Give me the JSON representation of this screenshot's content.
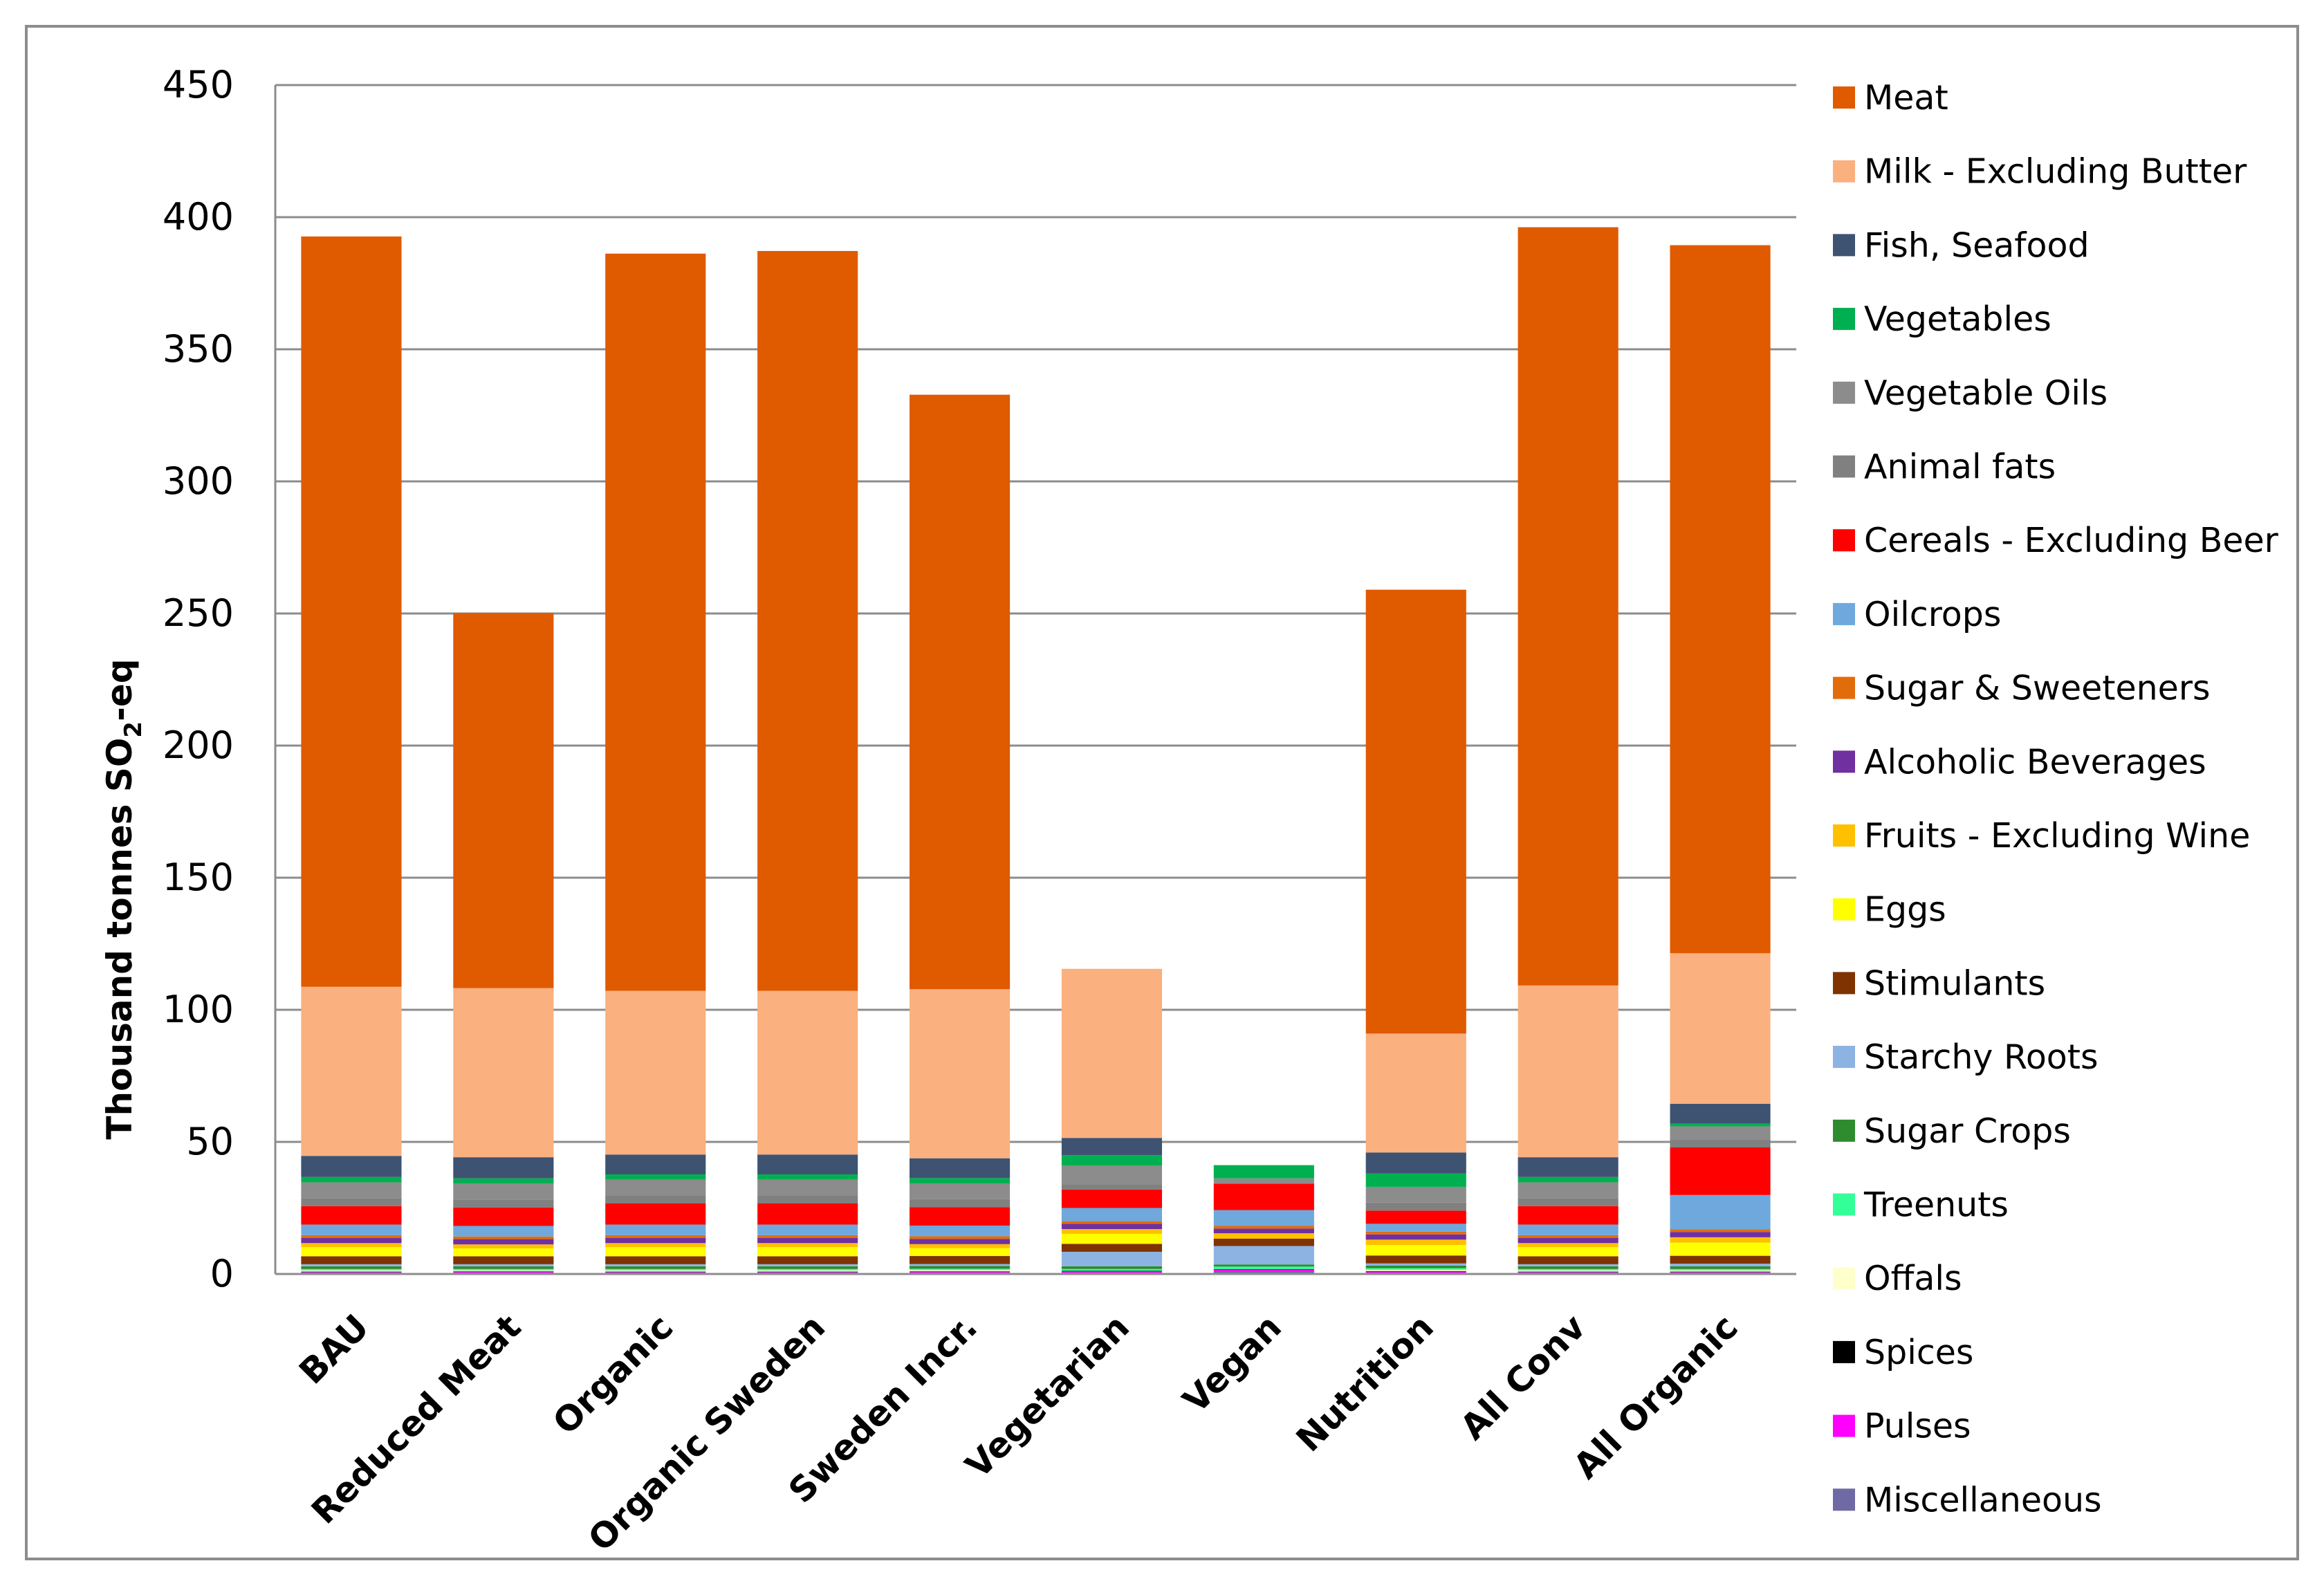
{
  "chart_data": {
    "type": "bar",
    "stacked": true,
    "title": "",
    "xlabel": "",
    "ylabel": "Thousand tonnes SO",
    "ylabel_sub": "2",
    "ylabel_suffix": "-eq",
    "ylim": [
      0,
      450
    ],
    "yticks": [
      0,
      50,
      100,
      150,
      200,
      250,
      300,
      350,
      400,
      450
    ],
    "ytick_labels": [
      "0",
      "50",
      "100",
      "150",
      "200",
      "250",
      "300",
      "350",
      "400",
      "450"
    ],
    "grid": true,
    "legend_position": "right",
    "categories": [
      "BAU",
      "Reduced Meat",
      "Organic",
      "Organic Sweden",
      "Sweden Incr.",
      "Vegetarian",
      "Vegan",
      "Nutrition",
      "All Conv",
      "All Organic"
    ],
    "series": [
      {
        "name": "Miscellaneous",
        "color": "#6F6AA4",
        "values": [
          0.5,
          0.5,
          0.5,
          0.5,
          0.5,
          0.5,
          0.8,
          0.5,
          0.5,
          0.5
        ]
      },
      {
        "name": "Pulses",
        "color": "#FF00FF",
        "values": [
          0.2,
          0.3,
          0.2,
          0.2,
          0.3,
          0.5,
          0.8,
          0.4,
          0.2,
          0.2
        ]
      },
      {
        "name": "Spices",
        "color": "#000000",
        "values": [
          0.2,
          0.2,
          0.2,
          0.2,
          0.2,
          0.2,
          0.2,
          0.2,
          0.2,
          0.2
        ]
      },
      {
        "name": "Offals",
        "color": "#FFFFCC",
        "values": [
          0.5,
          0.4,
          0.5,
          0.5,
          0.5,
          0.0,
          0.0,
          0.5,
          0.5,
          0.5
        ]
      },
      {
        "name": "Treenuts",
        "color": "#33FF99",
        "values": [
          0.5,
          0.5,
          0.5,
          0.5,
          0.5,
          0.7,
          1.0,
          0.6,
          0.5,
          0.5
        ]
      },
      {
        "name": "Sugar Crops",
        "color": "#2E8B2E",
        "values": [
          1.0,
          1.0,
          1.0,
          1.0,
          1.0,
          1.0,
          0.8,
          1.0,
          1.0,
          1.0
        ]
      },
      {
        "name": "Starchy Roots",
        "color": "#8DB3E2",
        "values": [
          0.8,
          0.8,
          0.8,
          0.8,
          0.8,
          5.5,
          7.0,
          0.8,
          0.8,
          1.0
        ]
      },
      {
        "name": "Stimulants",
        "color": "#7F3300",
        "values": [
          3.0,
          3.0,
          3.0,
          3.0,
          3.0,
          3.0,
          2.8,
          3.0,
          3.0,
          3.0
        ]
      },
      {
        "name": "Eggs",
        "color": "#FFFF00",
        "values": [
          3.5,
          3.0,
          3.5,
          3.5,
          3.0,
          3.8,
          0.0,
          4.0,
          3.5,
          5.0
        ]
      },
      {
        "name": "Fruits - Excluding Wine",
        "color": "#FFC000",
        "values": [
          1.5,
          1.5,
          1.5,
          1.5,
          1.5,
          1.8,
          2.0,
          2.0,
          1.5,
          2.0
        ]
      },
      {
        "name": "Alcoholic Beverages",
        "color": "#7030A0",
        "values": [
          2.0,
          2.0,
          2.0,
          2.0,
          2.0,
          2.0,
          1.8,
          2.0,
          2.0,
          2.0
        ]
      },
      {
        "name": "Sugar & Sweeteners",
        "color": "#E36C0A",
        "values": [
          1.0,
          1.0,
          1.0,
          1.0,
          1.0,
          1.0,
          1.0,
          1.0,
          1.0,
          1.0
        ]
      },
      {
        "name": "Oilcrops",
        "color": "#6FA8DC",
        "values": [
          4.0,
          4.0,
          4.0,
          4.0,
          4.0,
          5.0,
          6.0,
          3.0,
          4.0,
          13.0
        ]
      },
      {
        "name": "Cereals - Excluding Beer",
        "color": "#FF0000",
        "values": [
          7.0,
          7.0,
          8.0,
          8.0,
          7.0,
          7.0,
          10.0,
          5.0,
          7.0,
          18.0
        ]
      },
      {
        "name": "Animal fats",
        "color": "#808080",
        "values": [
          3.0,
          3.0,
          3.0,
          3.0,
          3.0,
          2.0,
          0.0,
          3.0,
          3.0,
          3.0
        ]
      },
      {
        "name": "Vegetable Oils",
        "color": "#8C8C8C",
        "values": [
          6.0,
          6.0,
          6.0,
          6.0,
          6.0,
          7.0,
          2.0,
          6.0,
          6.0,
          5.0
        ]
      },
      {
        "name": "Vegetables",
        "color": "#00B050",
        "values": [
          2.0,
          2.0,
          2.0,
          2.0,
          2.0,
          4.0,
          5.0,
          5.0,
          2.0,
          1.0
        ]
      },
      {
        "name": "Fish, Seafood",
        "color": "#3E5372",
        "values": [
          8.0,
          8.0,
          7.5,
          7.5,
          7.5,
          6.5,
          0.0,
          8.0,
          7.5,
          7.5
        ]
      },
      {
        "name": "Milk - Excluding Butter",
        "color": "#FAB07F",
        "values": [
          64.0,
          64.0,
          62.0,
          62.0,
          64.0,
          64.0,
          0.0,
          45.0,
          65.0,
          57.0
        ]
      },
      {
        "name": "Meat",
        "color": "#E05A00",
        "values": [
          284.0,
          142.0,
          279.0,
          280.0,
          225.0,
          0.0,
          0.0,
          168.0,
          287.0,
          268.0
        ]
      }
    ],
    "legend_order": [
      "Meat",
      "Milk - Excluding Butter",
      "Fish, Seafood",
      "Vegetables",
      "Vegetable Oils",
      "Animal fats",
      "Cereals - Excluding Beer",
      "Oilcrops",
      "Sugar & Sweeteners",
      "Alcoholic Beverages",
      "Fruits - Excluding Wine",
      "Eggs",
      "Stimulants",
      "Starchy Roots",
      "Sugar Crops",
      "Treenuts",
      "Offals",
      "Spices",
      "Pulses",
      "Miscellaneous"
    ]
  }
}
